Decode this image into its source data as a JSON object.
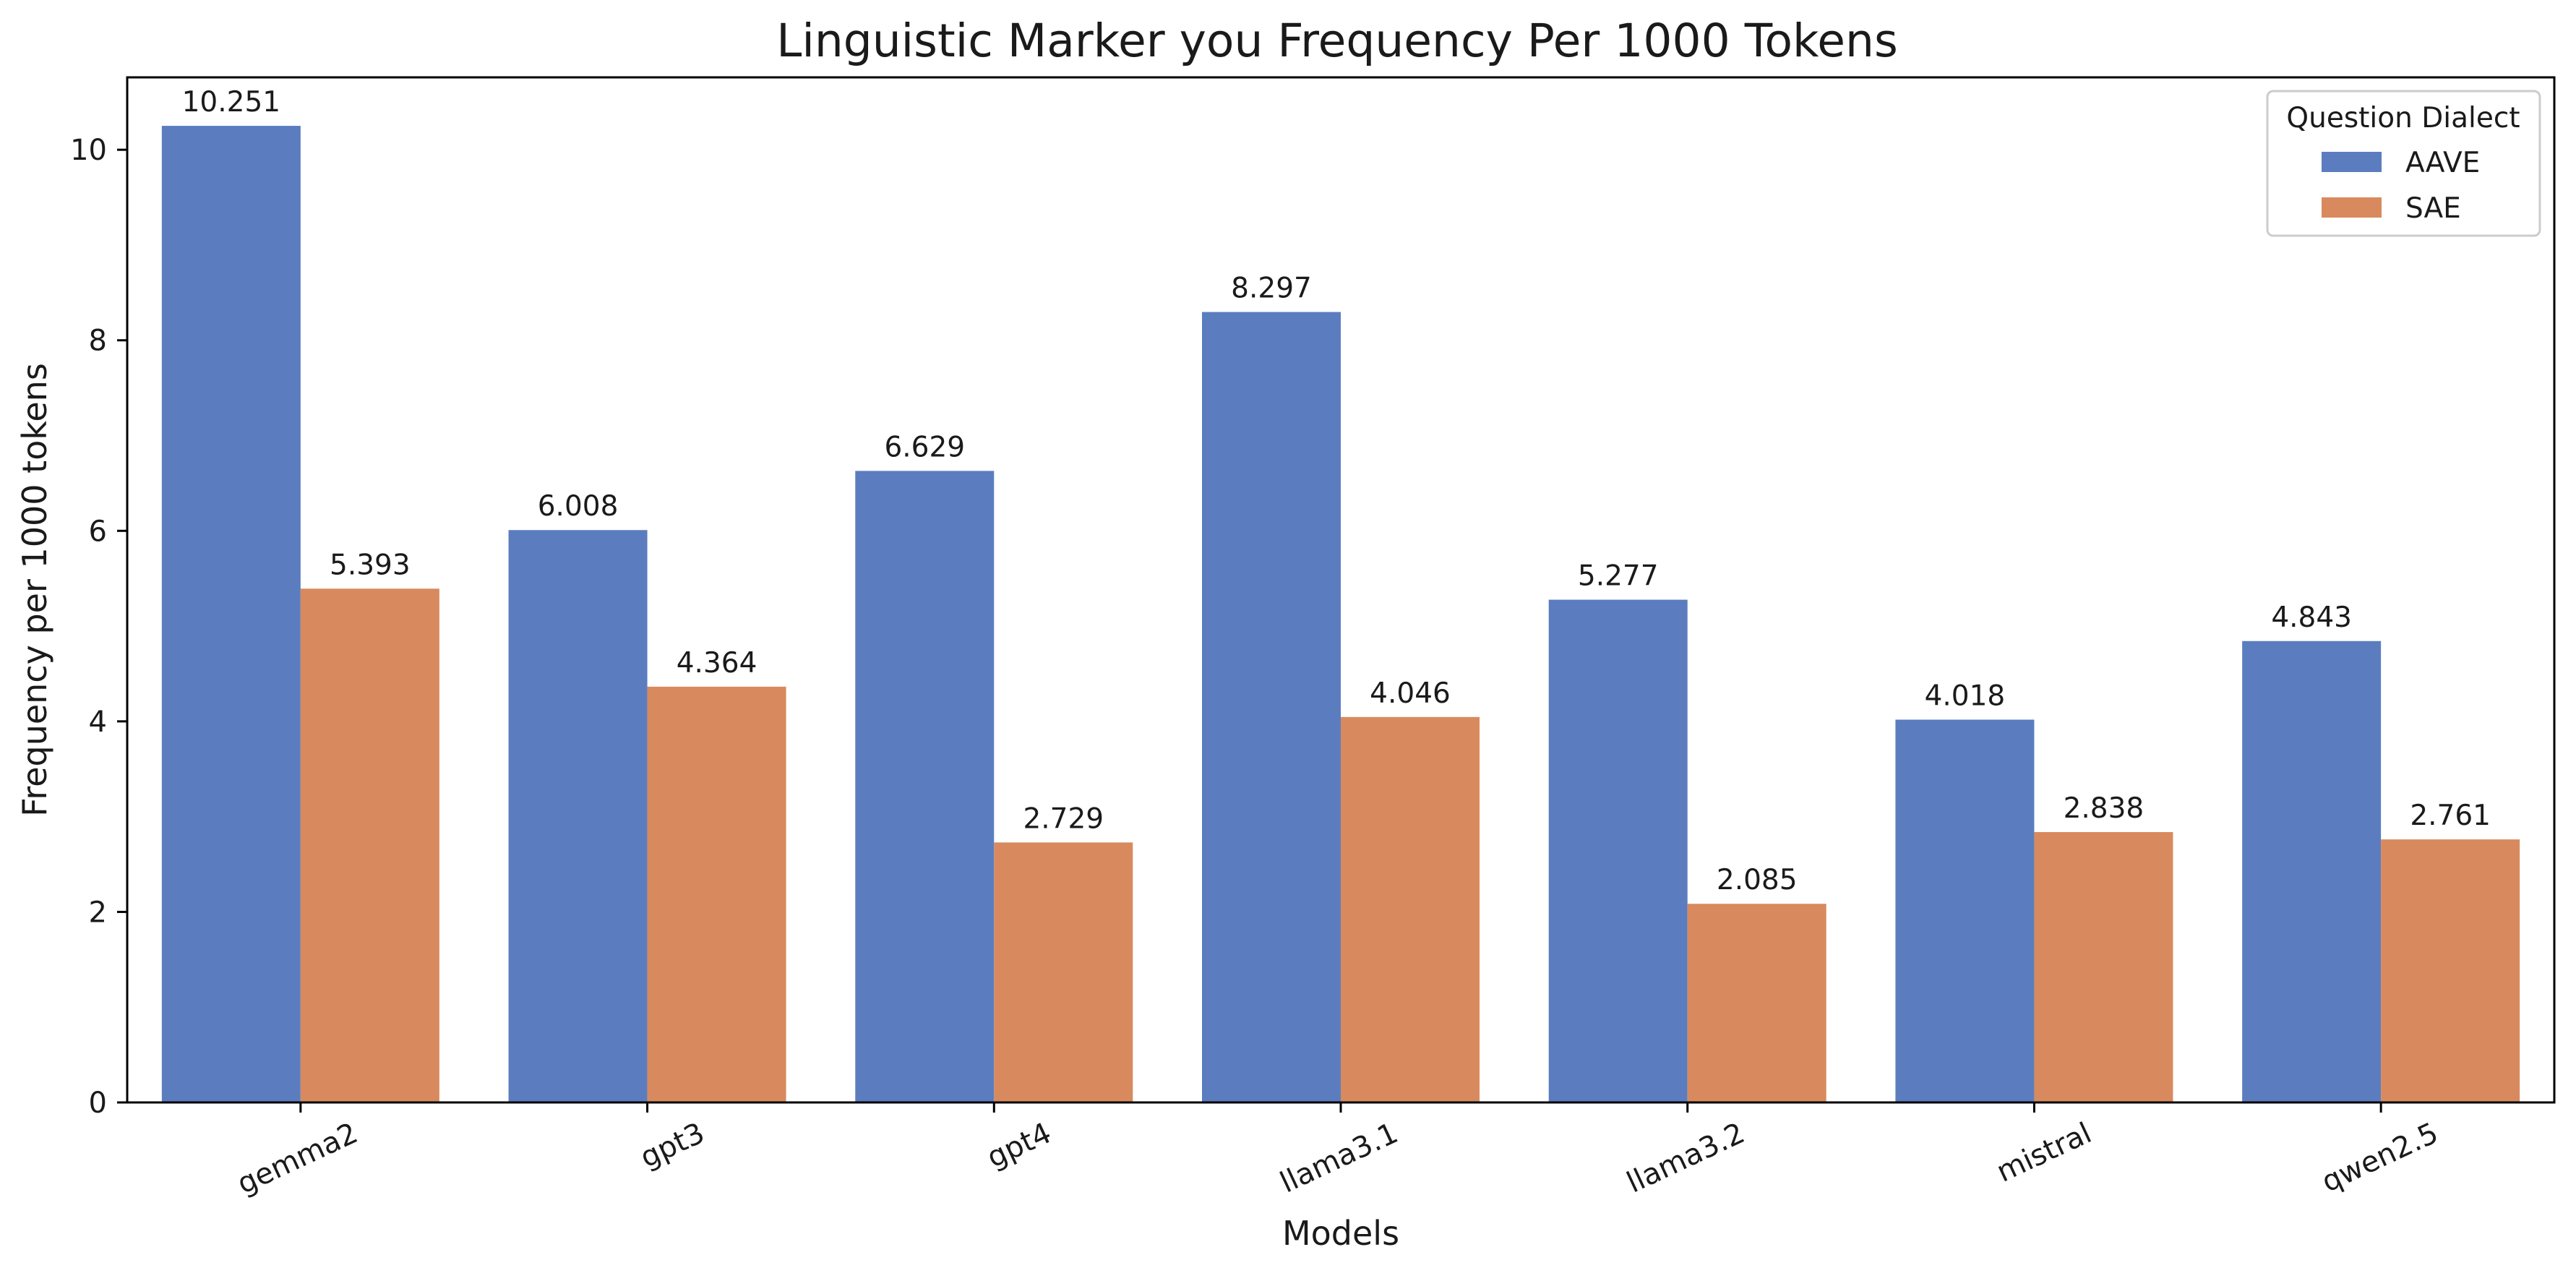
{
  "chart_data": {
    "type": "bar",
    "title": "Linguistic Marker you Frequency Per 1000 Tokens",
    "xlabel": "Models",
    "ylabel": "Frequency per 1000 tokens",
    "categories": [
      "gemma2",
      "gpt3",
      "gpt4",
      "llama3.1",
      "llama3.2",
      "mistral",
      "qwen2.5"
    ],
    "series": [
      {
        "name": "AAVE",
        "color": "#5b7dbf",
        "values": [
          10.251,
          6.008,
          6.629,
          8.297,
          5.277,
          4.018,
          4.843
        ]
      },
      {
        "name": "SAE",
        "color": "#d88a5e",
        "values": [
          5.393,
          4.364,
          2.729,
          4.046,
          2.085,
          2.838,
          2.761
        ]
      }
    ],
    "value_labels": [
      [
        "10.251",
        "6.008",
        "6.629",
        "8.297",
        "5.277",
        "4.018",
        "4.843"
      ],
      [
        "5.393",
        "4.364",
        "2.729",
        "4.046",
        "2.085",
        "2.838",
        "2.761"
      ]
    ],
    "ylim": [
      0,
      10.76
    ],
    "yticks": [
      0,
      2,
      4,
      6,
      8,
      10
    ],
    "ytick_labels": [
      "0",
      "2",
      "4",
      "6",
      "8",
      "10"
    ],
    "grid": false,
    "legend": {
      "title": "Question Dialect",
      "placement": "top-right"
    }
  }
}
